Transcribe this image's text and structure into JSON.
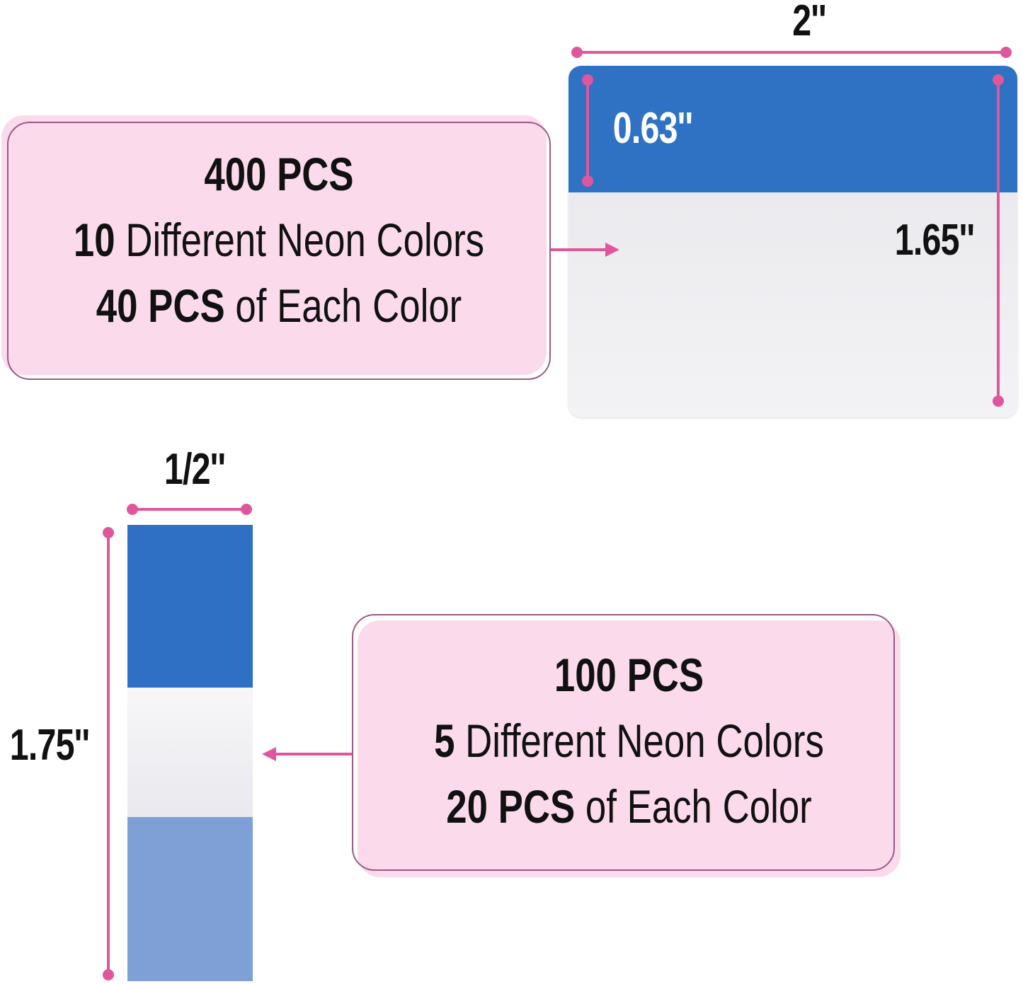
{
  "large_tab": {
    "width_label": "2''",
    "tab_height_label": "0.63''",
    "height_label": "1.65''",
    "colors": {
      "tab": "#2f72c4",
      "body": "#ececf0"
    }
  },
  "large_box": {
    "title": "400 PCS",
    "line2_num": "10",
    "line2_text": " Different Neon Colors",
    "line3_num": "40 PCS",
    "line3_text": " of Each Color"
  },
  "small_tab": {
    "width_label": "1/2''",
    "height_label": "1.75''",
    "colors": {
      "top": "#2f6fc4",
      "middle": "#f4f4f6",
      "bottom": "#7ea0d6"
    }
  },
  "small_box": {
    "title": "100 PCS",
    "line2_num": "5",
    "line2_text": " Different Neon Colors",
    "line3_num": "20 PCS",
    "line3_text": " of Each Color"
  },
  "accent_color": "#e0569b"
}
